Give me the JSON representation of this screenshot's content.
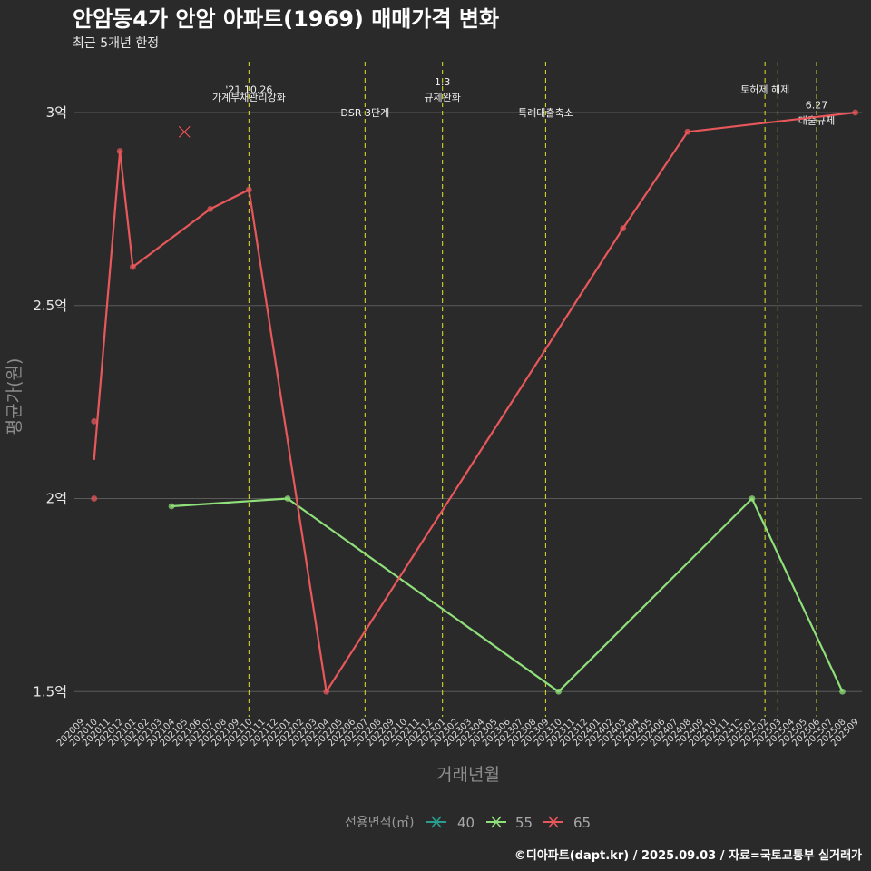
{
  "chart_data": {
    "type": "line",
    "title": "안암동4가 안암 아파트(1969) 매매가격 변화",
    "subtitle": "최근 5개년 한정",
    "xlabel": "거래년월",
    "ylabel": "평균가(원)",
    "caption": "©디아파트(dapt.kr) / 2025.09.03 / 자료=국토교통부 실거래가",
    "ylim": [
      1.45,
      3.15
    ],
    "yticks": [
      {
        "value": 1.5,
        "label": "1.5억"
      },
      {
        "value": 2.0,
        "label": "2억"
      },
      {
        "value": 2.5,
        "label": "2.5억"
      },
      {
        "value": 3.0,
        "label": "3억"
      }
    ],
    "categories": [
      "202009",
      "202010",
      "202011",
      "202012",
      "202101",
      "202102",
      "202103",
      "202104",
      "202105",
      "202106",
      "202107",
      "202108",
      "202109",
      "202110",
      "202111",
      "202112",
      "202201",
      "202202",
      "202203",
      "202204",
      "202205",
      "202206",
      "202207",
      "202208",
      "202209",
      "202210",
      "202211",
      "202212",
      "202301",
      "202302",
      "202303",
      "202304",
      "202305",
      "202306",
      "202307",
      "202308",
      "202309",
      "202310",
      "202311",
      "202312",
      "202401",
      "202402",
      "202403",
      "202404",
      "202405",
      "202406",
      "202407",
      "202408",
      "202409",
      "202410",
      "202411",
      "202412",
      "202501",
      "202502",
      "202503",
      "202504",
      "202505",
      "202506",
      "202507",
      "202508",
      "202509"
    ],
    "legend": {
      "title": "전용면적(㎡)",
      "position": "bottom",
      "entries": [
        {
          "label": "40",
          "color": "#2a9d8f"
        },
        {
          "label": "55",
          "color": "#8fe07a"
        },
        {
          "label": "65",
          "color": "#e8575a"
        }
      ]
    },
    "series": [
      {
        "name": "40",
        "color": "#2a9d8f",
        "line": [],
        "points": []
      },
      {
        "name": "55",
        "color": "#8fe07a",
        "line": [
          [
            "202104",
            1.98
          ],
          [
            "202201",
            2.0
          ],
          [
            "202310",
            1.5
          ],
          [
            "202501",
            2.0
          ],
          [
            "202508",
            1.5
          ]
        ],
        "points": [
          [
            "202104",
            1.98
          ],
          [
            "202201",
            2.0
          ],
          [
            "202310",
            1.5
          ],
          [
            "202501",
            2.0
          ],
          [
            "202508",
            1.5
          ]
        ]
      },
      {
        "name": "65",
        "color": "#e8575a",
        "line": [
          [
            "202010",
            2.1
          ],
          [
            "202012",
            2.9
          ],
          [
            "202101",
            2.6
          ],
          [
            "202107",
            2.75
          ],
          [
            "202110",
            2.8
          ],
          [
            "202204",
            1.5
          ],
          [
            "202403",
            2.7
          ],
          [
            "202408",
            2.95
          ],
          [
            "202509",
            3.0
          ]
        ],
        "points": [
          [
            "202010",
            2.2
          ],
          [
            "202010",
            2.0
          ],
          [
            "202012",
            2.9
          ],
          [
            "202101",
            2.6
          ],
          [
            "202107",
            2.75
          ],
          [
            "202110",
            2.8
          ],
          [
            "202204",
            1.5
          ],
          [
            "202403",
            2.7
          ],
          [
            "202408",
            2.95
          ],
          [
            "202509",
            3.0
          ]
        ],
        "cancelled": [
          [
            "202105",
            2.95
          ]
        ]
      }
    ],
    "events": [
      {
        "month": "202110",
        "value": 3.06,
        "label": "'21.10.26"
      },
      {
        "month": "202110",
        "value": 3.04,
        "label": "가계부채관리강화"
      },
      {
        "month": "202207",
        "value": 3.0,
        "label": "DSR 3단계"
      },
      {
        "month": "202301",
        "value": 3.08,
        "label": "1.3"
      },
      {
        "month": "202301",
        "value": 3.04,
        "label": "규제완화"
      },
      {
        "month": "202309",
        "value": 3.0,
        "label": "특례대출축소"
      },
      {
        "month": "202502",
        "value": 3.06,
        "label": "토허제 해제"
      },
      {
        "month": "202503",
        "value": null,
        "label": ""
      },
      {
        "month": "202506",
        "value": 3.02,
        "label": "6.27"
      },
      {
        "month": "202506",
        "value": 2.98,
        "label": "대출규제"
      }
    ]
  }
}
